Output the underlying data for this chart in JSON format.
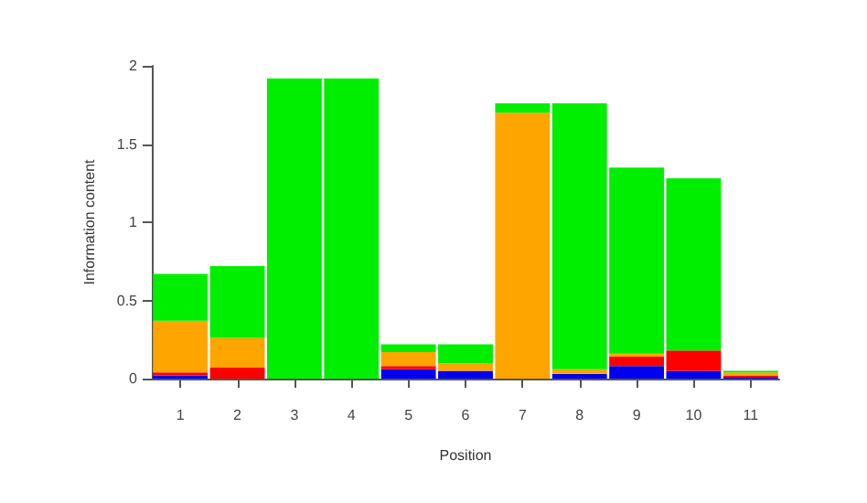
{
  "chart_data": {
    "type": "bar",
    "stacked": true,
    "xlabel": "Position",
    "ylabel": "Information content",
    "categories": [
      "1",
      "2",
      "3",
      "4",
      "5",
      "6",
      "7",
      "8",
      "9",
      "10",
      "11"
    ],
    "series": [
      {
        "color": "#0000ee",
        "values": [
          0.02,
          0,
          0,
          0,
          0.06,
          0.05,
          0,
          0.03,
          0.08,
          0.05,
          0.01
        ]
      },
      {
        "color": "#ff0000",
        "values": [
          0.02,
          0.07,
          0,
          0,
          0.02,
          0,
          0,
          0,
          0.06,
          0.13,
          0.01
        ]
      },
      {
        "color": "#ffa500",
        "values": [
          0.33,
          0.19,
          0,
          0,
          0.09,
          0.05,
          1.7,
          0.03,
          0.02,
          0,
          0.02
        ]
      },
      {
        "color": "#00ee00",
        "values": [
          0.3,
          0.46,
          1.92,
          1.92,
          0.05,
          0.12,
          0.06,
          1.7,
          1.19,
          1.1,
          0.01
        ]
      }
    ],
    "ylim": [
      0,
      2
    ],
    "yticks": [
      0,
      0.5,
      1,
      1.5,
      2
    ],
    "grid": false
  }
}
